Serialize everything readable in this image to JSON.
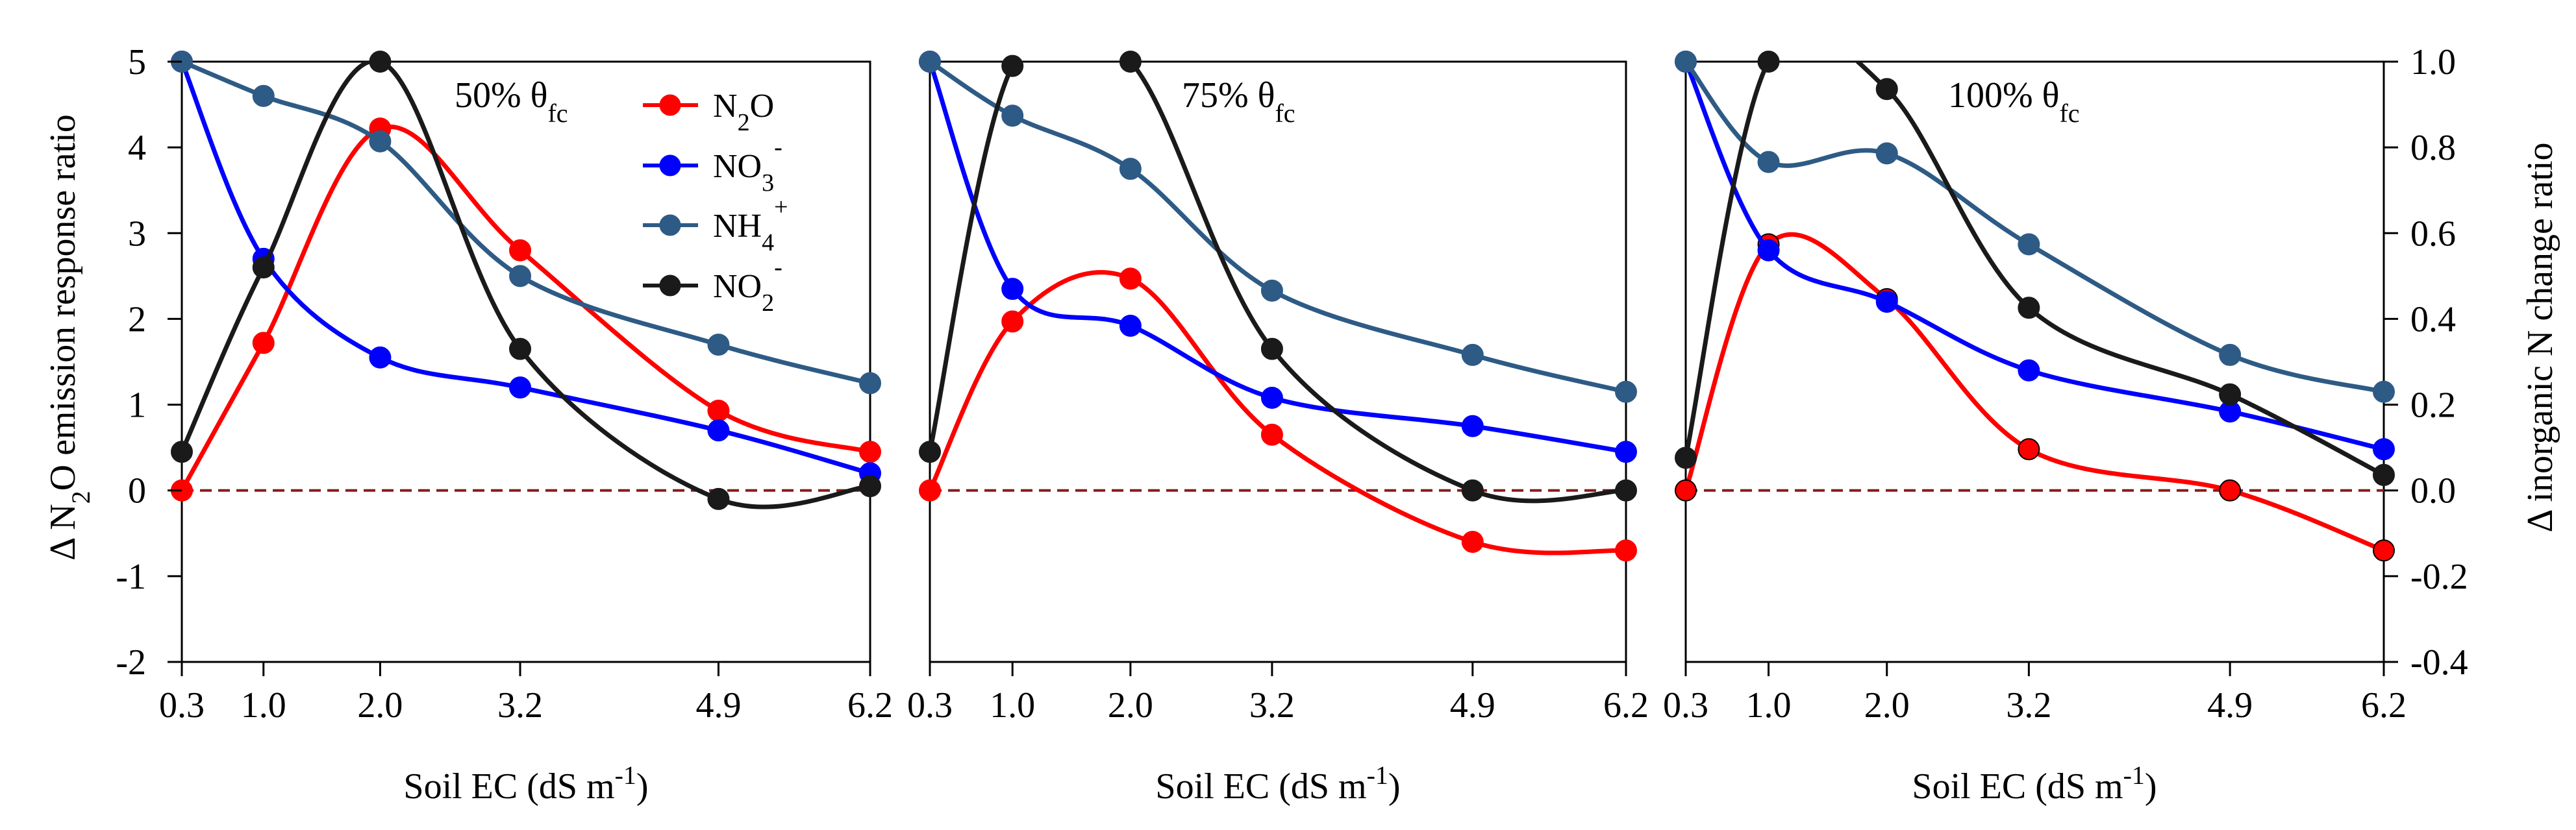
{
  "chart_data": {
    "type": "line",
    "x_ticks": [
      "0.3",
      "1.0",
      "2.0",
      "3.2",
      "4.9",
      "6.2"
    ],
    "x_values": [
      0.3,
      1.0,
      2.0,
      3.2,
      4.9,
      6.2
    ],
    "xlabel_main": "Soil EC (dS m",
    "xlabel_sup": "-1",
    "xlabel_close": ")",
    "left_axis": {
      "label_prefix": "Δ N",
      "label_sub": "2",
      "label_suffix": "O emission response ratio",
      "ylim": [
        -2,
        5
      ],
      "ticks": [
        "5",
        "4",
        "3",
        "2",
        "1",
        "0",
        "-1",
        "-2"
      ]
    },
    "right_axis": {
      "label": "Δ inorganic N change ratio",
      "ylim": [
        -0.4,
        1.0
      ],
      "ticks": [
        "1.0",
        "0.8",
        "0.6",
        "0.4",
        "0.2",
        "0.0",
        "-0.2",
        "-0.4"
      ]
    },
    "reference_line": 0,
    "colors": {
      "N2O": "#ff0000",
      "NO3": "#0000ff",
      "NH4": "#2e5b85",
      "NO2": "#1a1a1a",
      "reference": "#8b1a1a"
    },
    "legend": [
      {
        "key": "N2O",
        "base": "N",
        "sub": "2",
        "sup": "",
        "tail": "O"
      },
      {
        "key": "NO3",
        "base": "NO",
        "sub": "3",
        "sup": "-",
        "tail": ""
      },
      {
        "key": "NH4",
        "base": "NH",
        "sub": "4",
        "sup": "+",
        "tail": ""
      },
      {
        "key": "NO2",
        "base": "NO",
        "sub": "2",
        "sup": "-",
        "tail": ""
      }
    ],
    "panels": [
      {
        "label_main": "50% θ",
        "label_sub": "fc",
        "series": [
          {
            "name": "N2O",
            "axis": "left",
            "values": [
              0.0,
              1.72,
              4.22,
              2.8,
              0.93,
              0.45
            ]
          },
          {
            "name": "NO3",
            "axis": "left",
            "values": [
              5.0,
              2.7,
              1.55,
              1.2,
              0.7,
              0.2
            ]
          },
          {
            "name": "NH4",
            "axis": "left",
            "values": [
              5.0,
              4.6,
              4.07,
              2.5,
              1.7,
              1.25
            ]
          },
          {
            "name": "NO2",
            "axis": "left",
            "values": [
              0.45,
              2.6,
              5.0,
              1.65,
              -0.1,
              0.05
            ]
          }
        ]
      },
      {
        "label_main": "75% θ",
        "label_sub": "fc",
        "series": [
          {
            "name": "N2O",
            "axis": "left",
            "values": [
              0.0,
              1.97,
              2.47,
              0.65,
              -0.6,
              -0.7
            ]
          },
          {
            "name": "NO3",
            "axis": "left",
            "values": [
              5.0,
              2.35,
              1.92,
              1.08,
              0.75,
              0.45
            ]
          },
          {
            "name": "NH4",
            "axis": "left",
            "values": [
              5.0,
              4.37,
              3.75,
              2.33,
              1.58,
              1.15
            ]
          },
          {
            "name": "NO2",
            "axis": "left",
            "values": [
              0.45,
              4.95,
              5.0,
              1.65,
              0.0,
              0.0
            ]
          }
        ]
      },
      {
        "label_main": "100% θ",
        "label_sub": "fc",
        "series": [
          {
            "name": "N2O",
            "axis": "left",
            "values": [
              0.0,
              2.87,
              2.23,
              0.48,
              0.0,
              -0.7
            ]
          },
          {
            "name": "NO3",
            "axis": "left",
            "values": [
              5.0,
              2.8,
              2.2,
              1.4,
              0.92,
              0.48
            ]
          },
          {
            "name": "NH4",
            "axis": "left",
            "values": [
              5.0,
              3.83,
              3.93,
              2.87,
              1.58,
              1.15
            ]
          },
          {
            "name": "NO2",
            "axis": "left",
            "values": [
              0.38,
              5.0,
              4.68,
              2.13,
              1.12,
              0.18
            ]
          }
        ]
      }
    ]
  }
}
